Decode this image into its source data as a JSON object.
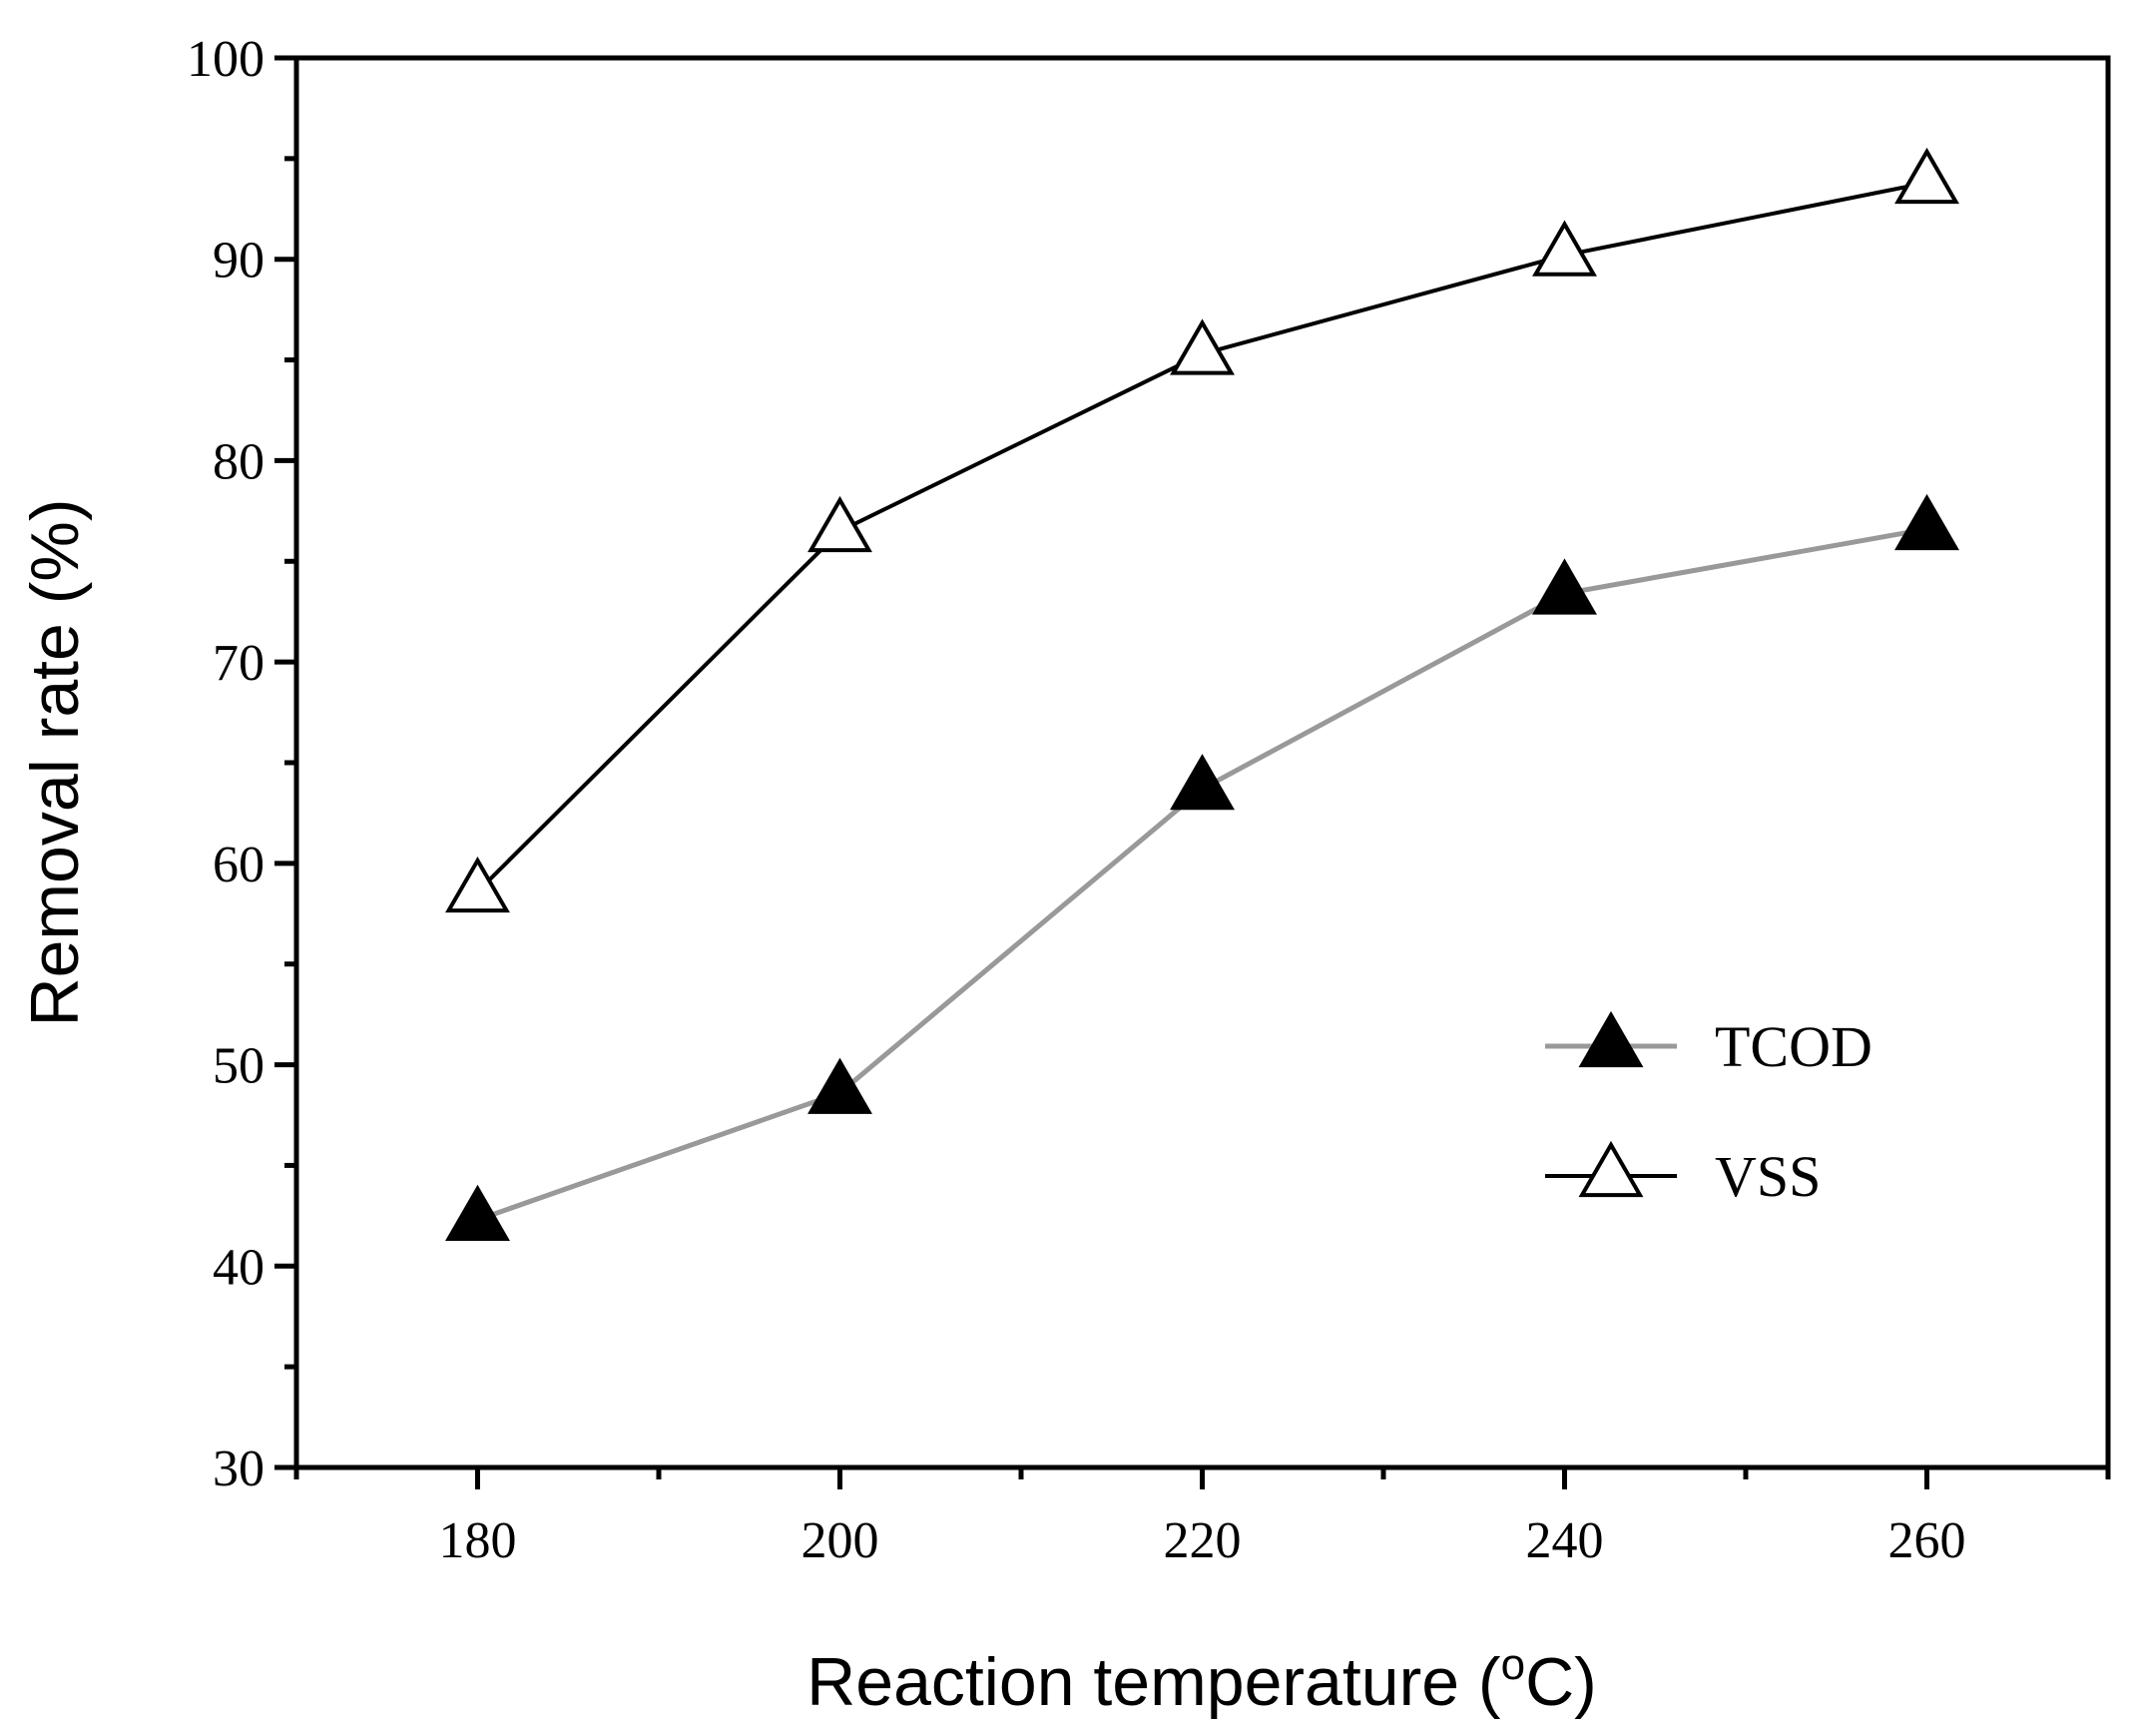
{
  "chart_data": {
    "type": "line",
    "title": "",
    "xlabel": "Reaction temperature (",
    "xlabel_superscript": "o",
    "xlabel_suffix": "C)",
    "ylabel": "Removal rate (%)",
    "x": [
      180,
      200,
      220,
      240,
      260
    ],
    "xlim": [
      170,
      270
    ],
    "ylim": [
      30,
      100
    ],
    "x_ticks": [
      "180",
      "200",
      "220",
      "240",
      "260"
    ],
    "y_ticks": [
      "30",
      "40",
      "50",
      "60",
      "70",
      "80",
      "90",
      "100"
    ],
    "grid": false,
    "legend_position": "right",
    "series": [
      {
        "name": "TCOD",
        "values": [
          42.3,
          48.6,
          63.7,
          73.4,
          76.6
        ],
        "line_color": "#999999",
        "marker": "filled-triangle",
        "marker_color": "#000000"
      },
      {
        "name": "VSS",
        "values": [
          58.6,
          76.5,
          85.3,
          90.2,
          93.8
        ],
        "line_color": "#000000",
        "marker": "open-triangle",
        "marker_color": "#000000"
      }
    ]
  }
}
